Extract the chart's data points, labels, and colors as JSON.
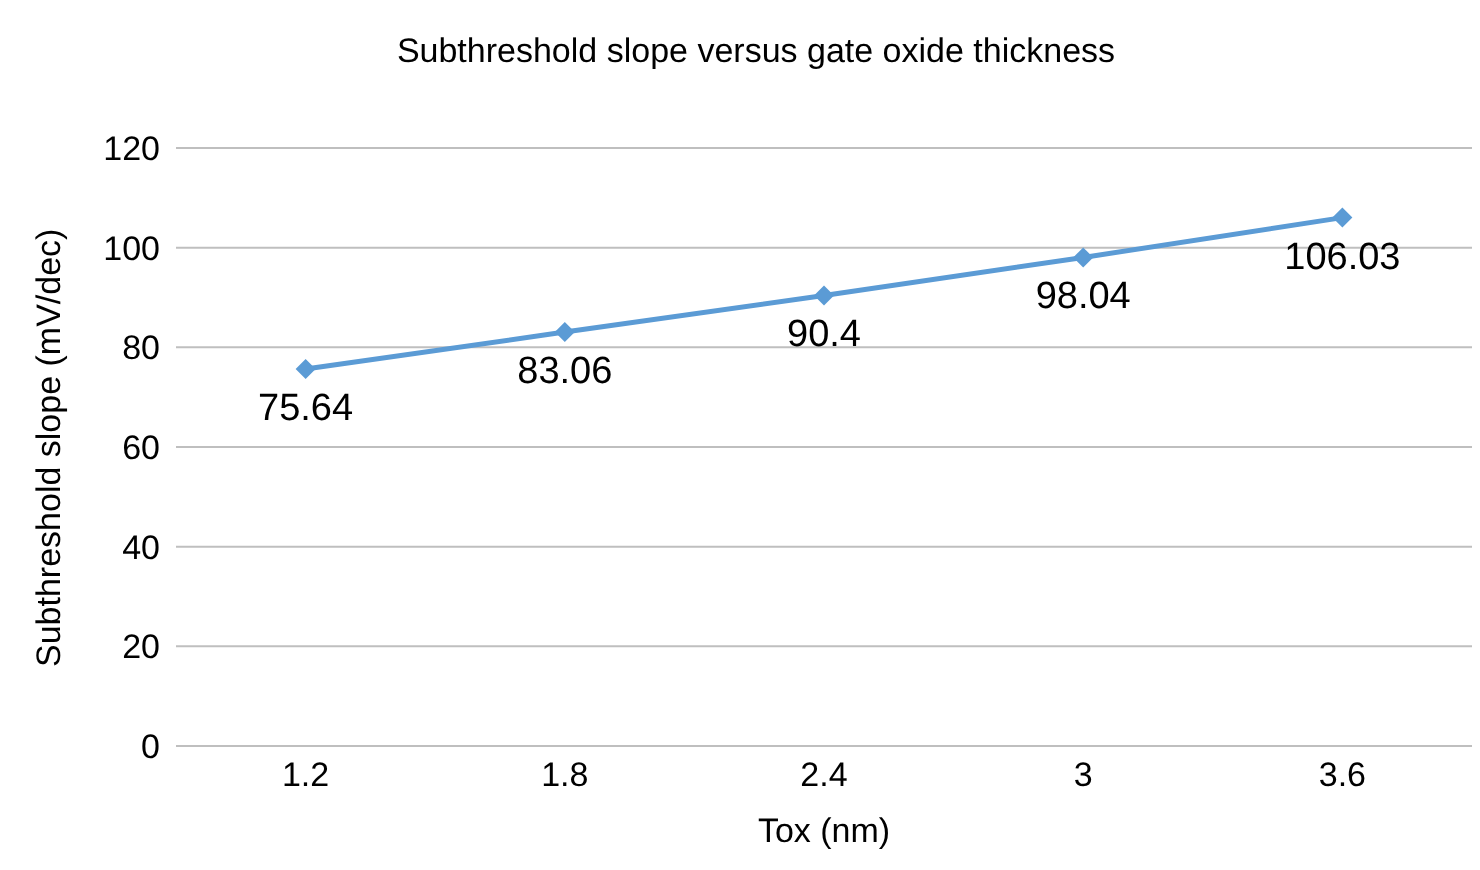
{
  "chart_data": {
    "type": "line",
    "title": "Subthreshold slope versus gate oxide thickness",
    "xlabel": "Tox (nm)",
    "ylabel": "Subthreshold slope (mV/dec)",
    "categories": [
      "1.2",
      "1.8",
      "2.4",
      "3",
      "3.6"
    ],
    "series": [
      {
        "color": "#5b9bd5",
        "values": [
          75.64,
          83.06,
          90.4,
          98.04,
          106.03
        ]
      }
    ],
    "ylim": [
      0,
      120
    ],
    "yticks": [
      0,
      20,
      40,
      60,
      80,
      100,
      120
    ],
    "grid": "y",
    "marker": "diamond",
    "data_labels": true,
    "legend": false
  }
}
